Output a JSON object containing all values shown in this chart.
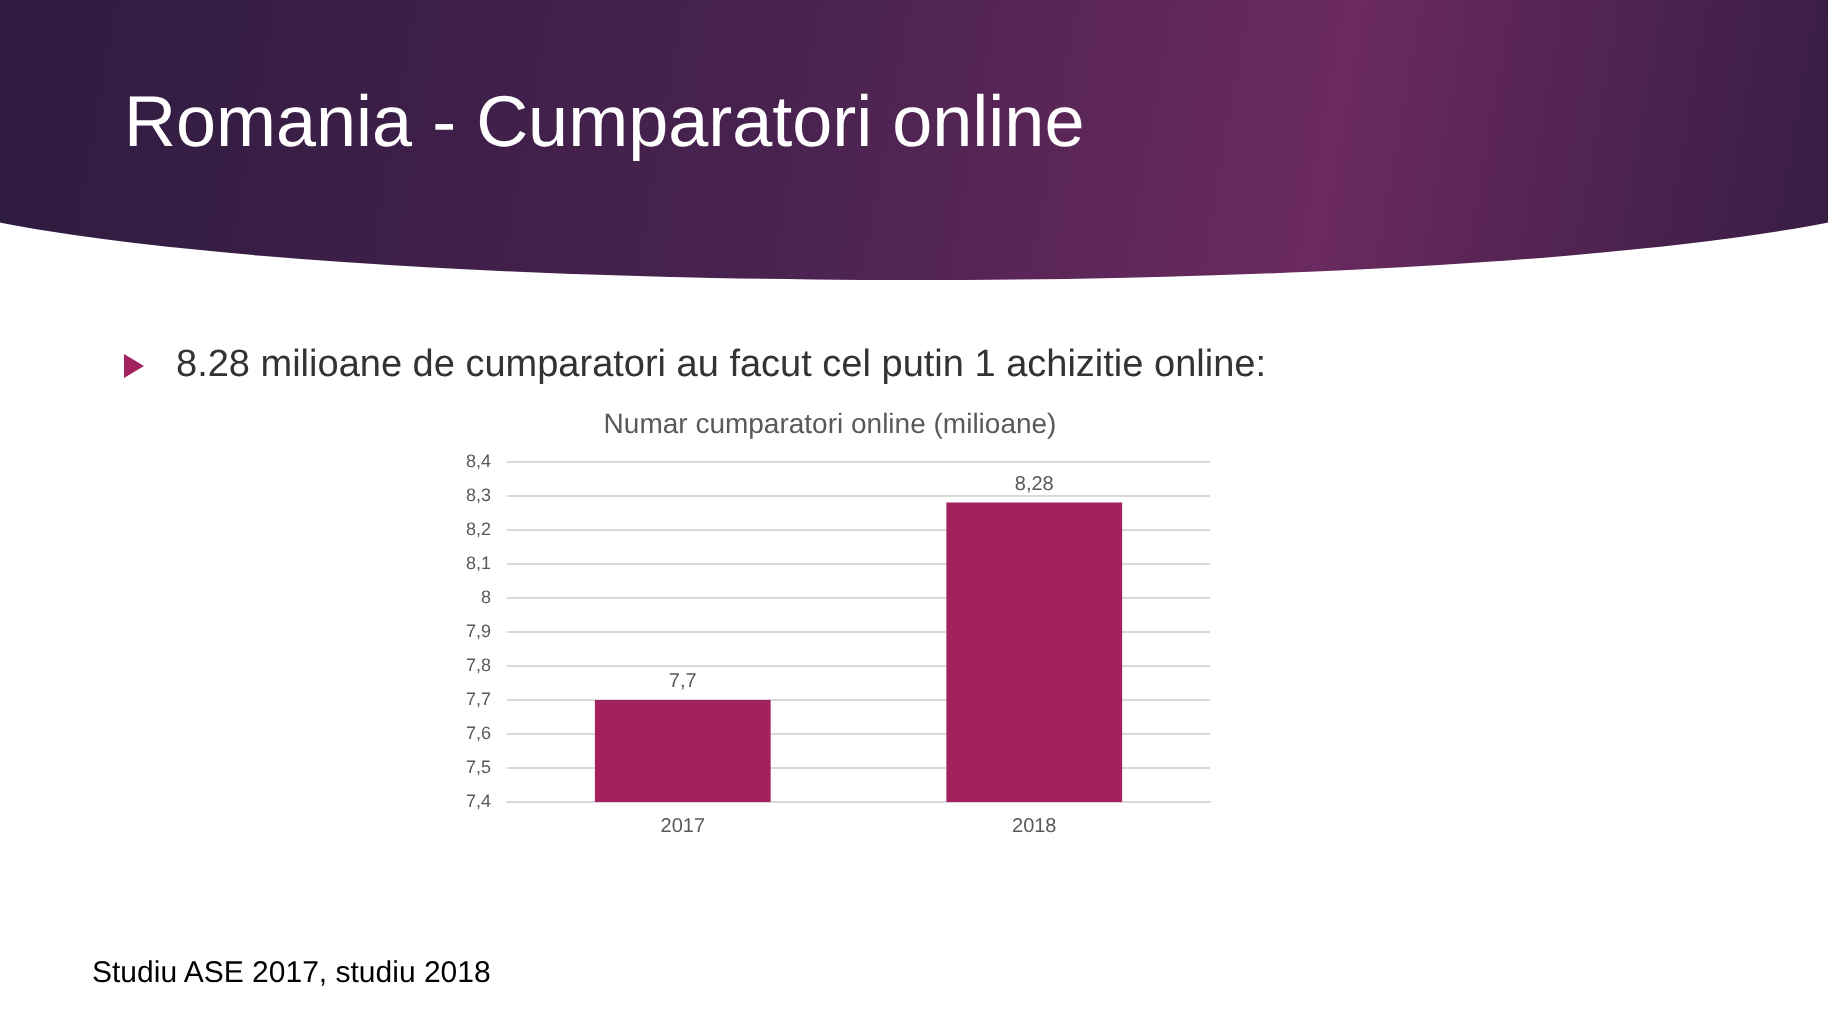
{
  "chart_data": {
    "type": "bar",
    "title": "Numar cumparatori online (milioane)",
    "categories": [
      "2017",
      "2018"
    ],
    "values": [
      7.7,
      8.28
    ],
    "value_labels": [
      "7,7",
      "8,28"
    ],
    "color": "#a3215f",
    "ylim": [
      7.4,
      8.4
    ],
    "yticks": [
      {
        "value": 7.4,
        "label": "7,4"
      },
      {
        "value": 7.5,
        "label": "7,5"
      },
      {
        "value": 7.6,
        "label": "7,6"
      },
      {
        "value": 7.7,
        "label": "7,7"
      },
      {
        "value": 7.8,
        "label": "7,8"
      },
      {
        "value": 7.9,
        "label": "7,9"
      },
      {
        "value": 8,
        "label": "8"
      },
      {
        "value": 8.1,
        "label": "8,1"
      },
      {
        "value": 8.2,
        "label": "8,2"
      },
      {
        "value": 8.3,
        "label": "8,3"
      },
      {
        "value": 8.4,
        "label": "8,4"
      }
    ],
    "grid": "y",
    "legend": false,
    "annotations": [
      "Romania - Cumparatori online",
      "8.28 milioane de cumparatori au facut cel putin 1 achizitie online:",
      "Studiu ASE 2017, studiu 2018"
    ]
  }
}
